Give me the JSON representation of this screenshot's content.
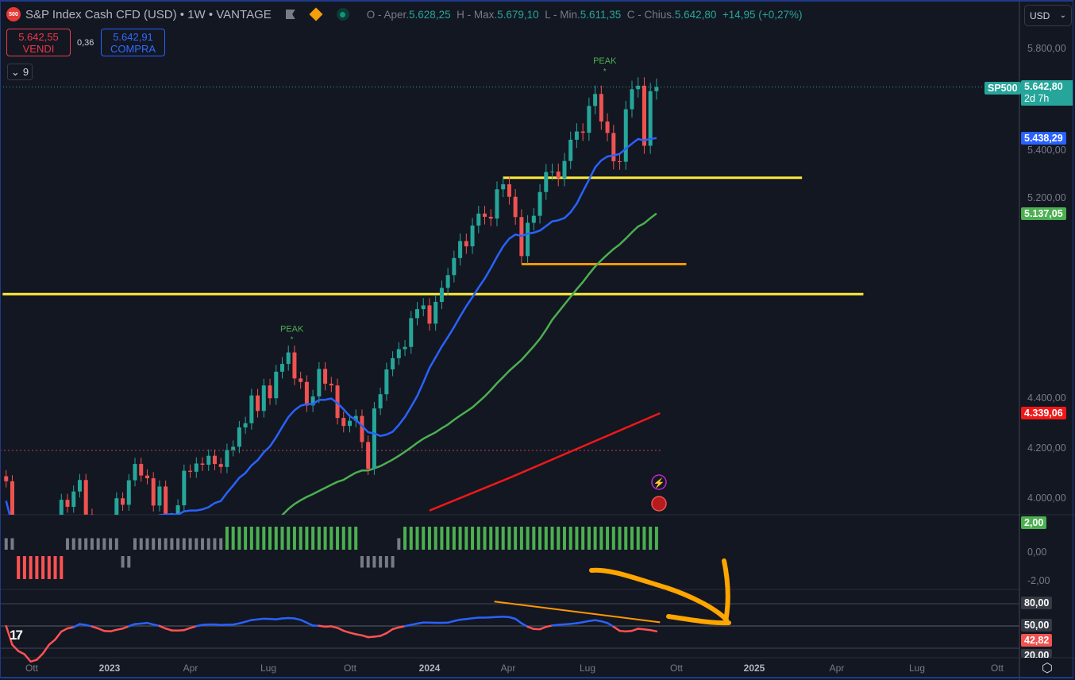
{
  "header": {
    "logo_text": "500",
    "title": "S&P Index Cash CFD (USD) • 1W • VANTAGE",
    "ohlc": {
      "open_label": "O - Aper.",
      "open": "5.628,25",
      "high_label": "H - Max.",
      "high": "5.679,10",
      "low_label": "L - Min.",
      "low": "5.611,35",
      "close_label": "C - Chius.",
      "close": "5.642,80",
      "change": "+14,95 (+0,27%)"
    },
    "icons": [
      "flag-icon",
      "diamond-icon",
      "market-open-dot-icon"
    ]
  },
  "trade": {
    "sell_price": "5.642,55",
    "sell_label": "VENDI",
    "spread": "0,36",
    "buy_price": "5.642,91",
    "buy_label": "COMPRA"
  },
  "indicators_toggle": {
    "count": "9"
  },
  "currency_select": "USD",
  "price_axis": [
    "5.800,00",
    "5.400,00",
    "5.200,00",
    "4.400,00",
    "4.200,00",
    "4.000,00"
  ],
  "price_tags": {
    "symbol": "SP500",
    "last": "5.642,80",
    "countdown": "2d 7h",
    "ma_fast": "5.438,29",
    "ma_mid": "5.137,05",
    "ma_slow": "4.339,06"
  },
  "oscillator_axis": [
    "0,00",
    "-2,00"
  ],
  "oscillator_tag": "2,00",
  "rsi_axis": [
    "80,00",
    "50,00",
    "20,00"
  ],
  "rsi_tag": "42,82",
  "time_axis": [
    {
      "label": "Ott",
      "year": false
    },
    {
      "label": "2023",
      "year": true
    },
    {
      "label": "Apr",
      "year": false
    },
    {
      "label": "Lug",
      "year": false
    },
    {
      "label": "Ott",
      "year": false
    },
    {
      "label": "2024",
      "year": true
    },
    {
      "label": "Apr",
      "year": false
    },
    {
      "label": "Lug",
      "year": false
    },
    {
      "label": "Ott",
      "year": false
    },
    {
      "label": "2025",
      "year": true
    },
    {
      "label": "Apr",
      "year": false
    },
    {
      "label": "Lug",
      "year": false
    },
    {
      "label": "Ott",
      "year": false
    }
  ],
  "annotations": {
    "peak_label": "PEAK"
  },
  "colors": {
    "up": "#26a69a",
    "down": "#ef5350",
    "ma_fast": "#2962ff",
    "ma_mid": "#4caf50",
    "ma_slow": "#f01818",
    "level": "#ffeb3b",
    "support": "#ff9800",
    "drawing": "#ffa500",
    "hist_green": "#4caf50",
    "hist_gray": "#787b86",
    "hist_red": "#ff5252",
    "rsi": "#2962ff",
    "rsi_low": "#ff5252"
  },
  "chart_data": {
    "type": "candlestick",
    "timeframe": "1W",
    "closes": [
      4067,
      3873,
      3693,
      3586,
      3640,
      3583,
      3752,
      3901,
      3771,
      3993,
      3965,
      4026,
      4072,
      3934,
      3852,
      3845,
      3840,
      3895,
      3999,
      3973,
      4071,
      4136,
      4090,
      4079,
      3970,
      4046,
      3862,
      3917,
      3971,
      4109,
      4105,
      4138,
      4133,
      4169,
      4136,
      4124,
      4192,
      4205,
      4282,
      4299,
      4410,
      4348,
      4450,
      4399,
      4505,
      4536,
      4582,
      4478,
      4464,
      4370,
      4406,
      4516,
      4457,
      4450,
      4320,
      4288,
      4309,
      4328,
      4224,
      4117,
      4358,
      4415,
      4514,
      4559,
      4595,
      4604,
      4719,
      4755,
      4770,
      4697,
      4784,
      4840,
      4891,
      4959,
      5027,
      5006,
      5089,
      5137,
      5124,
      5117,
      5234,
      5254,
      5204,
      5123,
      4967,
      5100,
      5128,
      5223,
      5303,
      5305,
      5278,
      5347,
      5432,
      5465,
      5460,
      5567,
      5615,
      5505,
      5459,
      5346,
      5344,
      5554,
      5634,
      5648,
      5408,
      5626,
      5642.8
    ],
    "price_range": [
      3930,
      5900
    ],
    "moving_averages": [
      {
        "color_key": "ma_fast",
        "last": 5438.29
      },
      {
        "color_key": "ma_mid",
        "last": 5137.05
      },
      {
        "color_key": "ma_slow",
        "last": 4339.06,
        "points": [
          [
            "2024-01-01",
            3950
          ],
          [
            "2024-04-01",
            4080
          ],
          [
            "2024-09-20",
            4339.06
          ]
        ]
      }
    ],
    "horizontal_levels": [
      {
        "price": 5280,
        "from": "2024-03-25",
        "to": "2025-03-01",
        "color_key": "level"
      },
      {
        "price": 4815,
        "from": "2022-09-01",
        "to": "2025-05-10",
        "color_key": "level"
      },
      {
        "price": 4935,
        "from": "2024-04-15",
        "to": "2024-10-20",
        "color_key": "support"
      }
    ],
    "peaks": [
      {
        "date": "2023-07-28",
        "price": 4607
      },
      {
        "date": "2024-07-19",
        "price": 5679.1
      }
    ],
    "oscillator": {
      "range": [
        -3,
        3
      ],
      "runs": [
        {
          "state": "gray",
          "value": 1,
          "weeks": 2
        },
        {
          "state": "red",
          "value": -2,
          "weeks": 8
        },
        {
          "state": "gray",
          "value": 1,
          "weeks": 9
        },
        {
          "state": "gray",
          "value": -1,
          "weeks": 2
        },
        {
          "state": "gray",
          "value": 1,
          "weeks": 15
        },
        {
          "state": "green",
          "value": 2,
          "weeks": 22
        },
        {
          "state": "gray",
          "value": -1,
          "weeks": 6
        },
        {
          "state": "gray",
          "value": 1,
          "weeks": 1
        },
        {
          "state": "green",
          "value": 2,
          "weeks": 42
        }
      ]
    },
    "rsi": {
      "range": [
        15,
        95
      ],
      "levels": [
        80,
        50,
        20
      ],
      "last": 42.82,
      "trendline": [
        [
          "2024-03-15",
          83
        ],
        [
          "2024-09-20",
          55
        ]
      ]
    }
  }
}
